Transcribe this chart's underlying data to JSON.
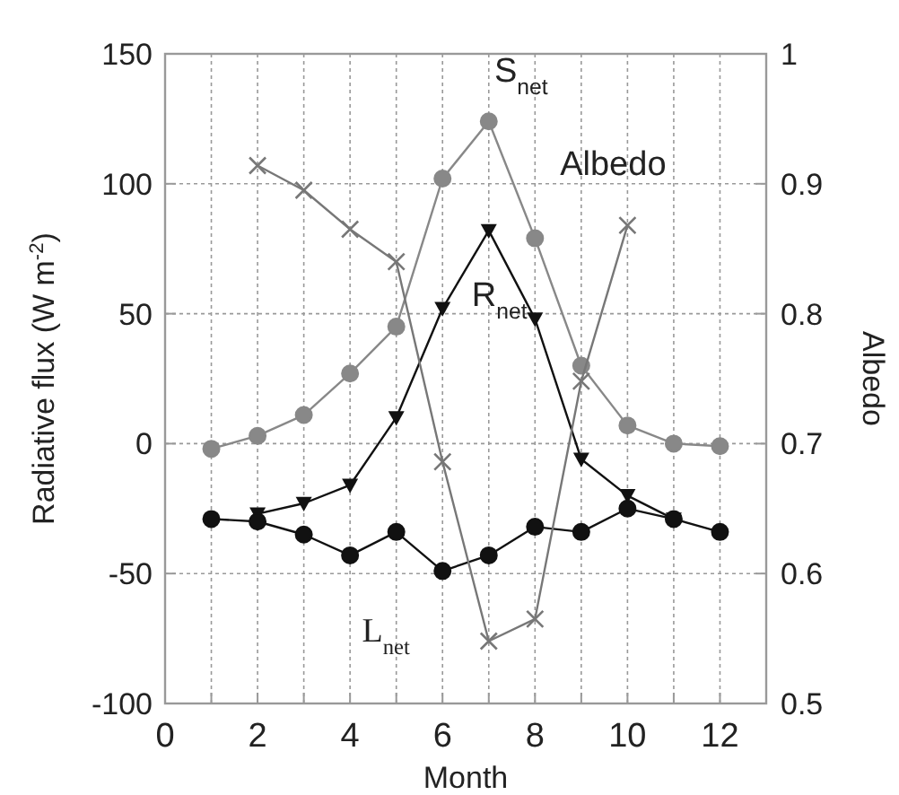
{
  "chart_data": {
    "type": "line",
    "xlabel": "Month",
    "ylabel": "Radiative flux (W m$^{-2}$)",
    "y2label": "Albedo",
    "xlim": [
      0,
      13
    ],
    "xticks": [
      0,
      {
        "value": 1,
        "label": null
      },
      2,
      {
        "value": 3,
        "label": null
      },
      4,
      {
        "value": 5,
        "label": null
      },
      6,
      {
        "value": 7,
        "label": null
      },
      8,
      {
        "value": 9,
        "label": null
      },
      10,
      {
        "value": 11,
        "label": null
      },
      12
    ],
    "ylim": [
      -100,
      150
    ],
    "yticks": [
      -100,
      -50,
      0,
      50,
      100,
      150
    ],
    "y2lim": [
      0.5,
      1
    ],
    "y2ticks": [
      0.5,
      0.6,
      0.7,
      0.8,
      0.9,
      1
    ],
    "grid": true,
    "line_style": "solid",
    "series": [
      {
        "name": "S$_{net}$",
        "color": "#888888",
        "marker": "circle",
        "x": [
          1,
          2,
          3,
          4,
          5,
          6,
          7,
          8,
          9,
          10,
          11,
          12
        ],
        "values": [
          -2,
          3,
          11,
          27,
          45,
          102,
          124,
          79,
          30,
          7,
          0,
          -1
        ]
      },
      {
        "name": "R$_{net}$",
        "color": "#111111",
        "marker": "triangle",
        "x": [
          2,
          3,
          4,
          5,
          6,
          7,
          8,
          9,
          10,
          11
        ],
        "values": [
          -27,
          -23,
          -16,
          10,
          52,
          82,
          48,
          -6,
          -20,
          -29
        ]
      },
      {
        "name": "L$_{net}$",
        "color": "#111111",
        "marker": "circle",
        "x": [
          1,
          2,
          3,
          4,
          5,
          6,
          7,
          8,
          9,
          10,
          11,
          12
        ],
        "values": [
          -29,
          -30,
          -35,
          -43,
          -34,
          -49,
          -43,
          -32,
          -34,
          -25,
          -29,
          -34
        ]
      },
      {
        "name": "Albedo",
        "color": "#777777",
        "marker": "cross",
        "axis": "y2",
        "x": [
          2,
          3,
          4,
          5,
          6,
          7,
          8,
          9,
          10
        ],
        "values": [
          0.914,
          0.895,
          0.865,
          0.84,
          0.686,
          0.548,
          0.565,
          0.748,
          0.868
        ]
      }
    ]
  }
}
